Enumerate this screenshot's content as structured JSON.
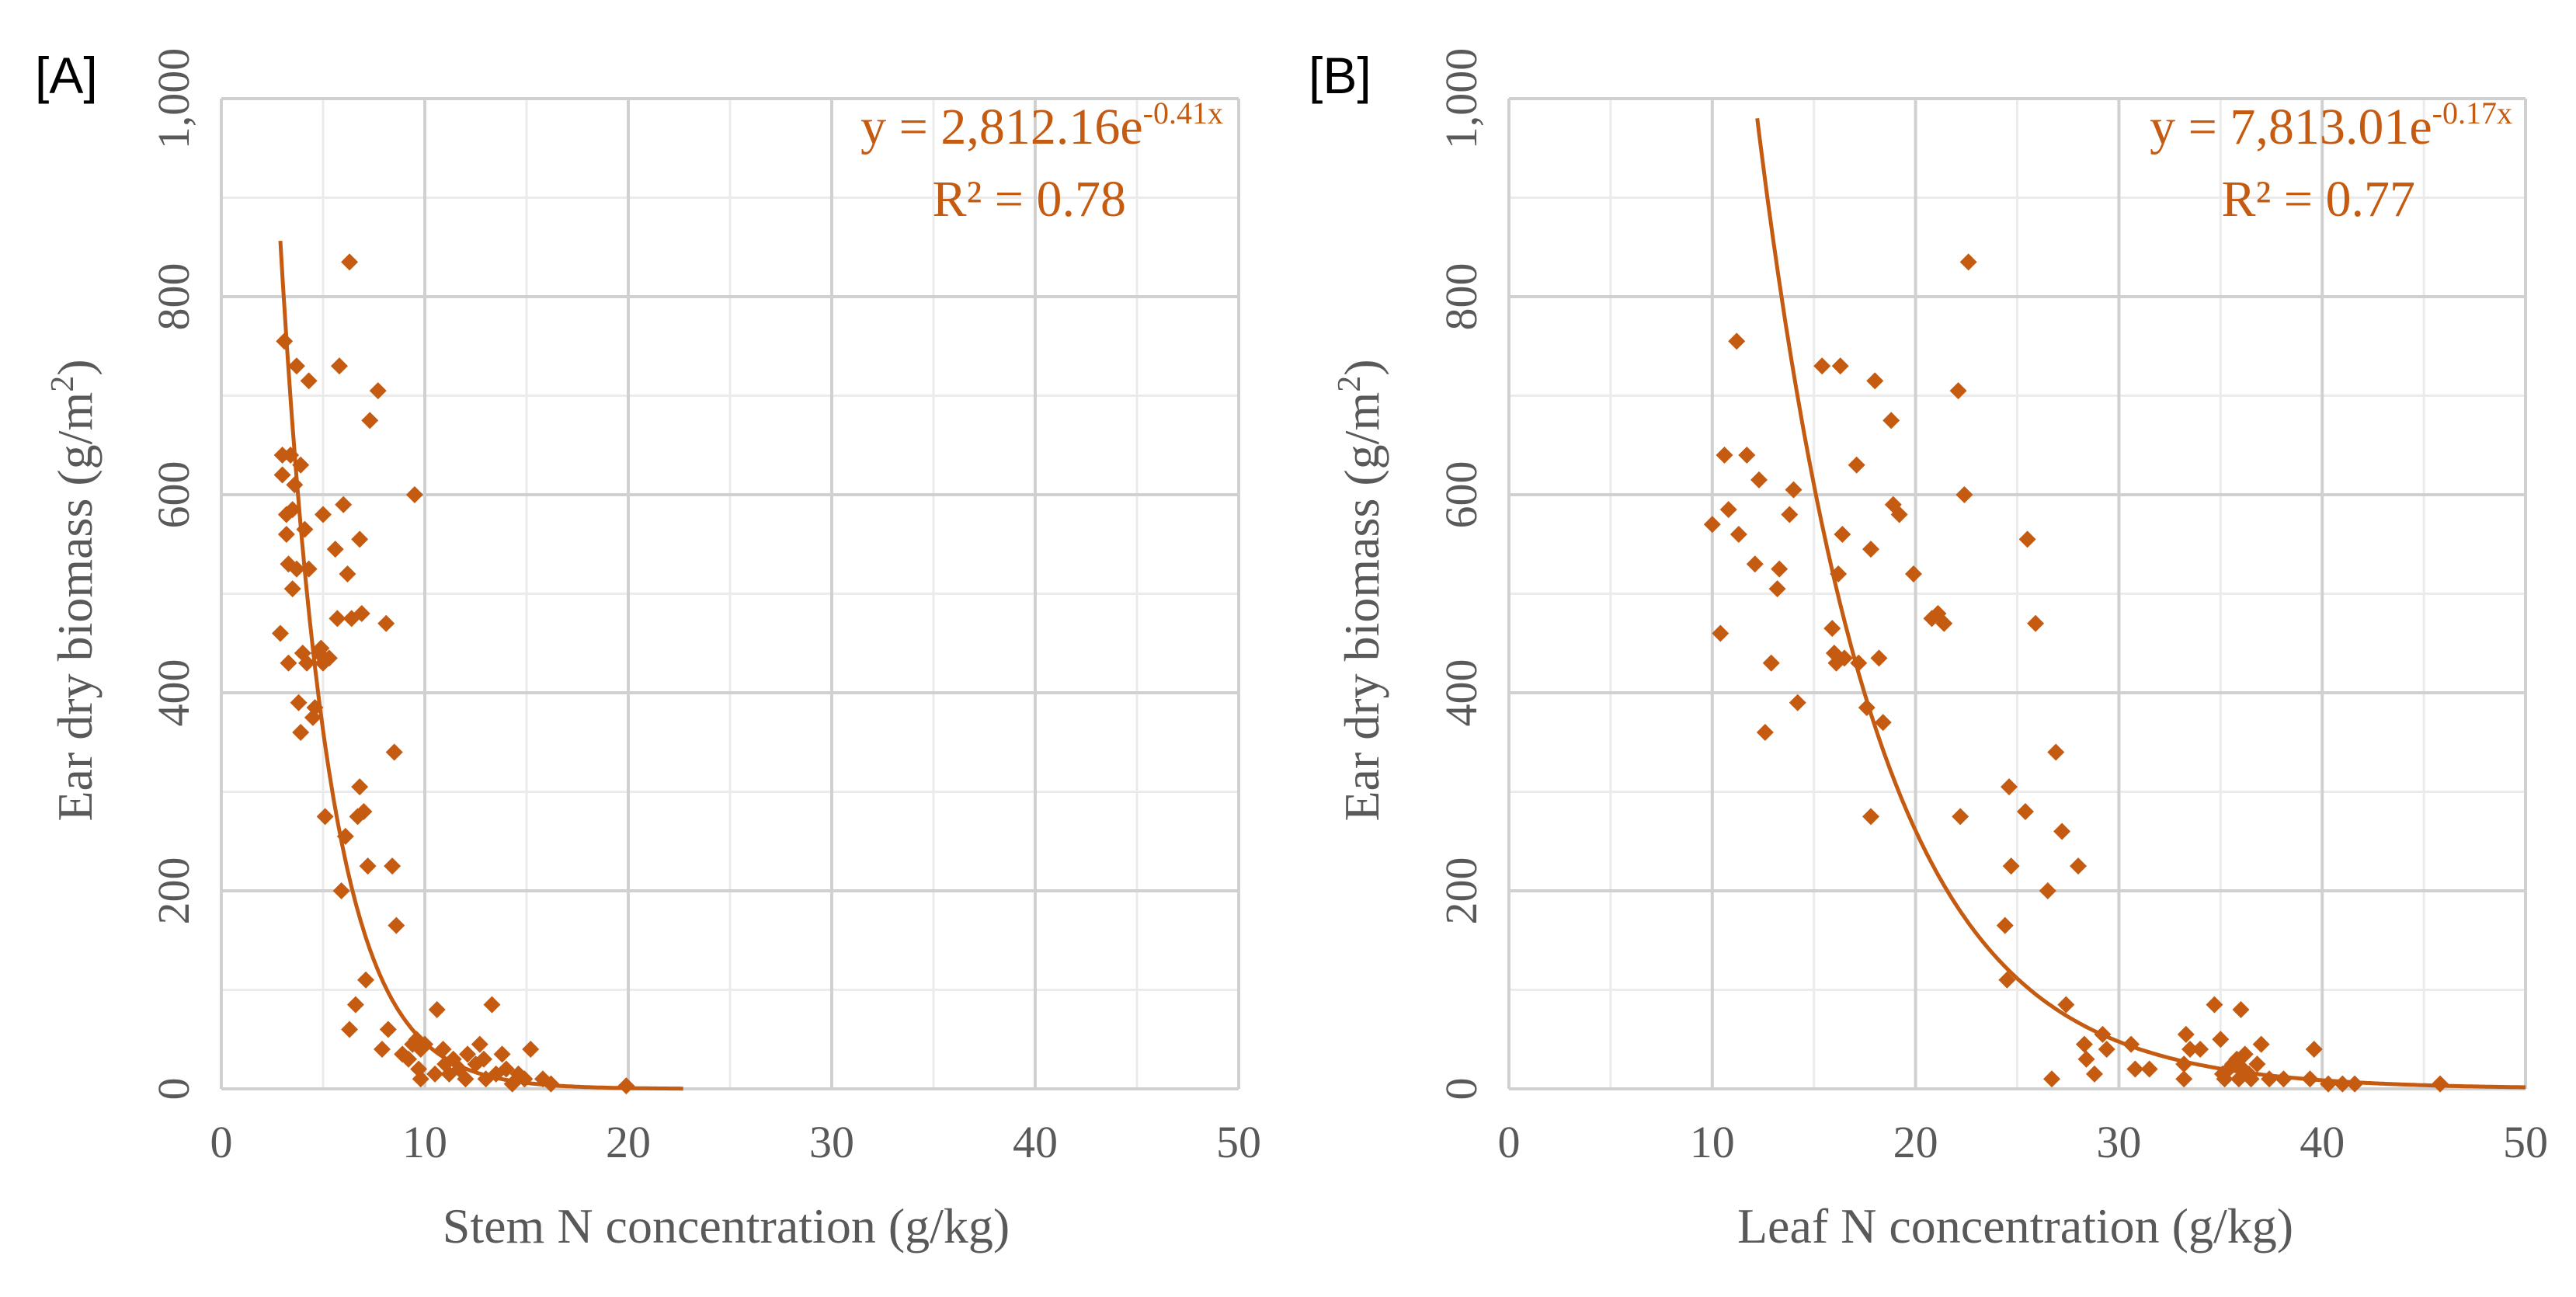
{
  "chart_data": [
    {
      "type": "scatter",
      "panel_label": "[A]",
      "xlabel": "Stem N concentration (g/kg)",
      "ylabel": "Ear dry biomass (g/m²)",
      "ylabel_parts": [
        "Ear dry biomass (g/m",
        "2",
        ")"
      ],
      "xlim": [
        0,
        50
      ],
      "ylim": [
        0,
        1000
      ],
      "x_ticks": [
        0,
        10,
        20,
        30,
        40,
        50
      ],
      "x_tick_labels": [
        "0",
        "10",
        "20",
        "30",
        "40",
        "50"
      ],
      "y_ticks": [
        0,
        200,
        400,
        600,
        800,
        1000
      ],
      "y_tick_labels": [
        "0",
        "200",
        "400",
        "600",
        "800",
        "1,000"
      ],
      "trendline": {
        "equation_prefix": "y = 2,812.16e",
        "equation_exponent": "-0.41x",
        "r_squared_text": "R² = 0.78",
        "a": 2812.16,
        "b": -0.41,
        "x_range": [
          2.9,
          22.7
        ]
      },
      "points": [
        [
          2.9,
          460
        ],
        [
          3.0,
          640
        ],
        [
          3.0,
          620
        ],
        [
          3.1,
          755
        ],
        [
          3.2,
          580
        ],
        [
          3.2,
          560
        ],
        [
          3.3,
          530
        ],
        [
          3.3,
          430
        ],
        [
          3.4,
          640
        ],
        [
          3.5,
          505
        ],
        [
          3.5,
          585
        ],
        [
          3.6,
          610
        ],
        [
          3.7,
          730
        ],
        [
          3.7,
          525
        ],
        [
          3.8,
          390
        ],
        [
          3.9,
          630
        ],
        [
          3.9,
          360
        ],
        [
          4.0,
          440
        ],
        [
          4.1,
          565
        ],
        [
          4.2,
          430
        ],
        [
          4.3,
          715
        ],
        [
          4.3,
          525
        ],
        [
          4.5,
          375
        ],
        [
          4.6,
          385
        ],
        [
          4.8,
          440
        ],
        [
          4.9,
          445
        ],
        [
          5.0,
          430
        ],
        [
          5.0,
          580
        ],
        [
          5.1,
          275
        ],
        [
          5.3,
          435
        ],
        [
          5.6,
          545
        ],
        [
          5.7,
          475
        ],
        [
          5.8,
          730
        ],
        [
          5.9,
          200
        ],
        [
          6.0,
          590
        ],
        [
          6.1,
          255
        ],
        [
          6.2,
          520
        ],
        [
          6.3,
          835
        ],
        [
          6.3,
          60
        ],
        [
          6.4,
          475
        ],
        [
          6.6,
          85
        ],
        [
          6.7,
          275
        ],
        [
          6.8,
          555
        ],
        [
          6.8,
          305
        ],
        [
          6.9,
          480
        ],
        [
          7.0,
          280
        ],
        [
          7.1,
          110
        ],
        [
          7.2,
          225
        ],
        [
          7.3,
          675
        ],
        [
          7.7,
          705
        ],
        [
          7.9,
          40
        ],
        [
          8.1,
          470
        ],
        [
          8.2,
          60
        ],
        [
          8.4,
          225
        ],
        [
          8.5,
          340
        ],
        [
          8.6,
          165
        ],
        [
          8.9,
          35
        ],
        [
          9.2,
          30
        ],
        [
          9.4,
          45
        ],
        [
          9.5,
          600
        ],
        [
          9.6,
          50
        ],
        [
          9.7,
          20
        ],
        [
          9.8,
          10
        ],
        [
          9.8,
          40
        ],
        [
          10.0,
          45
        ],
        [
          10.5,
          15
        ],
        [
          10.6,
          80
        ],
        [
          10.9,
          40
        ],
        [
          11.0,
          25
        ],
        [
          11.2,
          15
        ],
        [
          11.4,
          30
        ],
        [
          11.7,
          20
        ],
        [
          12.0,
          10
        ],
        [
          12.1,
          35
        ],
        [
          12.5,
          25
        ],
        [
          12.7,
          45
        ],
        [
          12.9,
          30
        ],
        [
          13.0,
          10
        ],
        [
          13.3,
          85
        ],
        [
          13.5,
          15
        ],
        [
          13.8,
          35
        ],
        [
          14.0,
          20
        ],
        [
          14.3,
          5
        ],
        [
          14.6,
          15
        ],
        [
          14.9,
          10
        ],
        [
          15.2,
          40
        ],
        [
          15.8,
          10
        ],
        [
          16.2,
          5
        ],
        [
          19.9,
          3
        ]
      ]
    },
    {
      "type": "scatter",
      "panel_label": "[B]",
      "xlabel": "Leaf N concentration (g/kg)",
      "ylabel": "Ear dry biomass (g/m²)",
      "ylabel_parts": [
        "Ear dry biomass (g/m",
        "2",
        ")"
      ],
      "xlim": [
        0,
        50
      ],
      "ylim": [
        0,
        1000
      ],
      "x_ticks": [
        0,
        10,
        20,
        30,
        40,
        50
      ],
      "x_tick_labels": [
        "0",
        "10",
        "20",
        "30",
        "40",
        "50"
      ],
      "y_ticks": [
        0,
        200,
        400,
        600,
        800,
        1000
      ],
      "y_tick_labels": [
        "0",
        "200",
        "400",
        "600",
        "800",
        "1,000"
      ],
      "trendline": {
        "equation_prefix": "y = 7,813.01e",
        "equation_exponent": "-0.17x",
        "r_squared_text": "R² = 0.77",
        "a": 7813.01,
        "b": -0.17,
        "x_range": [
          11.7,
          50
        ]
      },
      "points": [
        [
          10.0,
          570
        ],
        [
          10.4,
          460
        ],
        [
          10.6,
          640
        ],
        [
          10.8,
          585
        ],
        [
          11.2,
          755
        ],
        [
          11.3,
          560
        ],
        [
          11.7,
          640
        ],
        [
          12.1,
          530
        ],
        [
          12.3,
          615
        ],
        [
          12.6,
          360
        ],
        [
          12.9,
          430
        ],
        [
          13.2,
          505
        ],
        [
          13.3,
          525
        ],
        [
          13.8,
          580
        ],
        [
          14.0,
          605
        ],
        [
          14.2,
          390
        ],
        [
          15.4,
          730
        ],
        [
          15.9,
          465
        ],
        [
          16.0,
          440
        ],
        [
          16.1,
          430
        ],
        [
          16.2,
          520
        ],
        [
          16.3,
          730
        ],
        [
          16.4,
          560
        ],
        [
          16.5,
          435
        ],
        [
          17.1,
          630
        ],
        [
          17.2,
          430
        ],
        [
          17.6,
          385
        ],
        [
          17.8,
          545
        ],
        [
          17.8,
          275
        ],
        [
          18.0,
          715
        ],
        [
          18.2,
          435
        ],
        [
          18.4,
          370
        ],
        [
          18.8,
          675
        ],
        [
          18.9,
          590
        ],
        [
          19.2,
          580
        ],
        [
          19.9,
          520
        ],
        [
          20.8,
          475
        ],
        [
          21.1,
          480
        ],
        [
          21.4,
          470
        ],
        [
          22.1,
          705
        ],
        [
          22.2,
          275
        ],
        [
          22.4,
          600
        ],
        [
          22.6,
          835
        ],
        [
          24.4,
          165
        ],
        [
          24.5,
          110
        ],
        [
          24.6,
          305
        ],
        [
          24.7,
          225
        ],
        [
          25.4,
          280
        ],
        [
          25.5,
          555
        ],
        [
          25.9,
          470
        ],
        [
          26.5,
          200
        ],
        [
          26.7,
          10
        ],
        [
          26.9,
          340
        ],
        [
          27.2,
          260
        ],
        [
          27.4,
          85
        ],
        [
          28.0,
          225
        ],
        [
          28.3,
          45
        ],
        [
          28.4,
          30
        ],
        [
          28.8,
          15
        ],
        [
          29.2,
          55
        ],
        [
          29.4,
          40
        ],
        [
          30.6,
          45
        ],
        [
          30.8,
          20
        ],
        [
          31.5,
          20
        ],
        [
          33.2,
          10
        ],
        [
          33.2,
          25
        ],
        [
          33.3,
          55
        ],
        [
          33.5,
          40
        ],
        [
          34.0,
          40
        ],
        [
          34.7,
          85
        ],
        [
          35.0,
          50
        ],
        [
          35.1,
          15
        ],
        [
          35.2,
          10
        ],
        [
          35.4,
          20
        ],
        [
          35.6,
          25
        ],
        [
          35.8,
          30
        ],
        [
          35.9,
          10
        ],
        [
          36.0,
          80
        ],
        [
          36.1,
          20
        ],
        [
          36.2,
          35
        ],
        [
          36.4,
          15
        ],
        [
          36.5,
          10
        ],
        [
          36.8,
          25
        ],
        [
          37.0,
          45
        ],
        [
          37.4,
          10
        ],
        [
          38.1,
          10
        ],
        [
          39.4,
          10
        ],
        [
          39.6,
          40
        ],
        [
          40.3,
          5
        ],
        [
          41.0,
          5
        ],
        [
          41.6,
          5
        ],
        [
          45.8,
          5
        ]
      ]
    }
  ]
}
